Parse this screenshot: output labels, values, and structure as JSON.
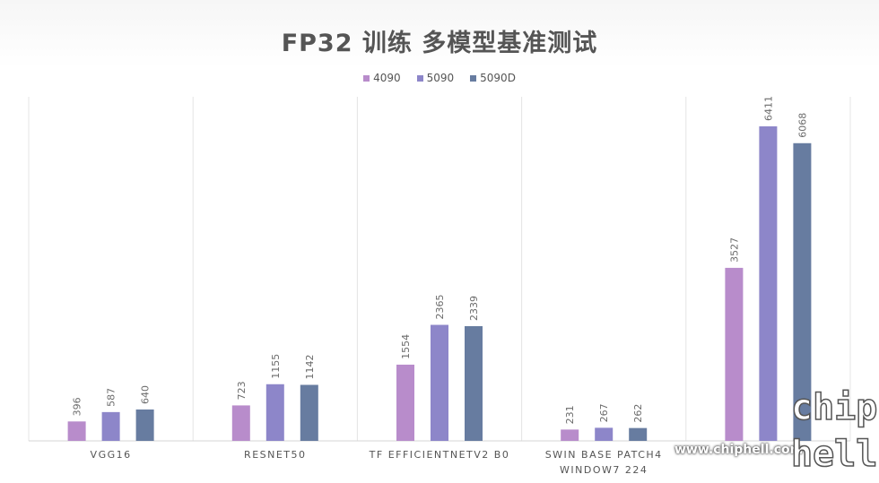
{
  "chart_data": {
    "type": "bar",
    "title": "FP32 训练 多模型基准测试",
    "categories": [
      "VGG16",
      "RESNET50",
      "TF EFFICIENTNETV2 B0",
      "SWIN BASE PATCH4 WINDOW7 224",
      ""
    ],
    "category_lines": [
      [
        "VGG16"
      ],
      [
        "RESNET50"
      ],
      [
        "TF EFFICIENTNETV2 B0"
      ],
      [
        "SWIN BASE PATCH4",
        "WINDOW7 224"
      ],
      [
        ""
      ]
    ],
    "series": [
      {
        "name": "4090",
        "color": "#b88ccb",
        "values": [
          396,
          723,
          1554,
          231,
          3527
        ]
      },
      {
        "name": "5090",
        "color": "#8d86c9",
        "values": [
          587,
          1155,
          2365,
          267,
          6411
        ]
      },
      {
        "name": "5090D",
        "color": "#677ca0",
        "values": [
          640,
          1142,
          2339,
          262,
          6068
        ]
      }
    ],
    "ylim": [
      0,
      7000
    ],
    "grid": "vertical category separators",
    "legend": "top-center"
  },
  "watermark": "www.chiphell.com",
  "logo": {
    "line1": "chip",
    "line2": "hell"
  }
}
